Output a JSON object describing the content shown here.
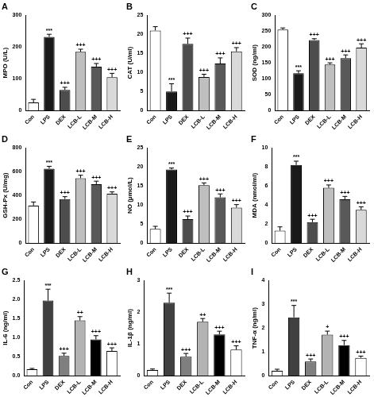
{
  "chart_data": [
    {
      "type": "bar",
      "title": "A",
      "y_label": "MPO (U/L)",
      "categories": [
        "Con",
        "LPS",
        "DEX",
        "LCB-L",
        "LCB-M",
        "LCB-H"
      ],
      "values": [
        25,
        232,
        65,
        185,
        138,
        105
      ],
      "errors": [
        10,
        8,
        8,
        8,
        10,
        12
      ],
      "significance": [
        null,
        "***",
        "+++",
        "+++",
        "+++",
        "+++"
      ],
      "colors": [
        "#ffffff",
        "#1a1a1a",
        "#4d4d4d",
        "#bfbfbf",
        "#595959",
        "#d9d9d9"
      ],
      "ylim": [
        0,
        300
      ],
      "yticks": [
        0,
        100,
        200,
        300
      ],
      "grid": false
    },
    {
      "type": "bar",
      "title": "B",
      "y_label": "CAT (U/ml)",
      "categories": [
        "Con",
        "LPS",
        "DEX",
        "LCB-L",
        "LCB-M",
        "LCB-H"
      ],
      "values": [
        21,
        5,
        17.5,
        8.8,
        12.3,
        15.5
      ],
      "errors": [
        1,
        2,
        1.5,
        0.7,
        1.5,
        1
      ],
      "significance": [
        null,
        "***",
        "+++",
        "+++",
        "+++",
        "+++"
      ],
      "colors": [
        "#ffffff",
        "#1a1a1a",
        "#4d4d4d",
        "#bfbfbf",
        "#595959",
        "#d9d9d9"
      ],
      "ylim": [
        0,
        25
      ],
      "yticks": [
        0,
        5,
        10,
        15,
        20,
        25
      ],
      "grid": false
    },
    {
      "type": "bar",
      "title": "C",
      "y_label": "SOD (ng/ml)",
      "categories": [
        "Con",
        "LPS",
        "DEX",
        "LCB-L",
        "LCB-M",
        "LCB-H"
      ],
      "values": [
        255,
        117,
        222,
        145,
        165,
        198
      ],
      "errors": [
        5,
        8,
        4,
        5,
        10,
        12
      ],
      "significance": [
        null,
        "***",
        "+++",
        "+++",
        "+++",
        "+++"
      ],
      "colors": [
        "#ffffff",
        "#1a1a1a",
        "#4d4d4d",
        "#bfbfbf",
        "#595959",
        "#d9d9d9"
      ],
      "ylim": [
        0,
        300
      ],
      "yticks": [
        0,
        50,
        100,
        150,
        200,
        250,
        300
      ],
      "grid": false
    },
    {
      "type": "bar",
      "title": "D",
      "y_label": "GSH-Px (U/mg)",
      "categories": [
        "Con",
        "LPS",
        "DEX",
        "LCB-L",
        "LCB-M",
        "LCB-H"
      ],
      "values": [
        315,
        625,
        370,
        545,
        495,
        415
      ],
      "errors": [
        30,
        20,
        20,
        25,
        25,
        15
      ],
      "significance": [
        null,
        "***",
        "+++",
        "+++",
        "+++",
        "+++"
      ],
      "colors": [
        "#ffffff",
        "#1a1a1a",
        "#4d4d4d",
        "#bfbfbf",
        "#595959",
        "#d9d9d9"
      ],
      "ylim": [
        0,
        800
      ],
      "yticks": [
        0,
        200,
        400,
        600,
        800
      ],
      "grid": false
    },
    {
      "type": "bar",
      "title": "E",
      "y_label": "NO (μmol/L)",
      "categories": [
        "Con",
        "LPS",
        "DEX",
        "LCB-L",
        "LCB-M",
        "LCB-H"
      ],
      "values": [
        3.7,
        19.3,
        6.3,
        15.2,
        12,
        9.3
      ],
      "errors": [
        0.7,
        0.4,
        0.8,
        0.6,
        0.9,
        0.8
      ],
      "significance": [
        null,
        "***",
        "+++",
        "+++",
        "+++",
        "+++"
      ],
      "colors": [
        "#ffffff",
        "#1a1a1a",
        "#4d4d4d",
        "#bfbfbf",
        "#595959",
        "#d9d9d9"
      ],
      "ylim": [
        0,
        25
      ],
      "yticks": [
        0,
        5,
        10,
        15,
        20,
        25
      ],
      "grid": false
    },
    {
      "type": "bar",
      "title": "F",
      "y_label": "MDA (nmol/ml)",
      "categories": [
        "Con",
        "LPS",
        "DEX",
        "LCB-L",
        "LCB-M",
        "LCB-H"
      ],
      "values": [
        1.3,
        8.2,
        2.2,
        5.8,
        4.6,
        3.5
      ],
      "errors": [
        0.4,
        0.4,
        0.3,
        0.3,
        0.3,
        0.3
      ],
      "significance": [
        null,
        "***",
        "+++",
        "+++",
        "+++",
        "+++"
      ],
      "colors": [
        "#ffffff",
        "#1a1a1a",
        "#4d4d4d",
        "#bfbfbf",
        "#595959",
        "#d9d9d9"
      ],
      "ylim": [
        0,
        10
      ],
      "yticks": [
        0,
        2,
        4,
        6,
        8,
        10
      ],
      "grid": false
    },
    {
      "type": "bar",
      "title": "G",
      "y_label": "IL-6 (ng/ml)",
      "categories": [
        "Con",
        "LPS",
        "DEX",
        "LCB-L",
        "LCB-M",
        "LCB-H"
      ],
      "values": [
        0.17,
        1.97,
        0.52,
        1.45,
        0.95,
        0.65
      ],
      "errors": [
        0.02,
        0.3,
        0.07,
        0.1,
        0.1,
        0.08
      ],
      "significance": [
        null,
        "***",
        "+++",
        "++",
        "+++",
        "+++"
      ],
      "colors": [
        "#ffffff",
        "#404040",
        "#7f7f7f",
        "#b3b3b3",
        "#000000",
        "#ffffff"
      ],
      "ylim": [
        0,
        2.5
      ],
      "yticks": [
        {
          "value": 0,
          "label": "0.0"
        },
        0.5,
        {
          "value": 1,
          "label": "1.0"
        },
        1.5,
        {
          "value": 2,
          "label": "2.0"
        },
        2.5
      ],
      "grid": false
    },
    {
      "type": "bar",
      "title": "H",
      "y_label": "IL-1β (ng/ml)",
      "categories": [
        "Con",
        "LPS",
        "DEX",
        "LCB-L",
        "LCB-M",
        "LCB-H"
      ],
      "values": [
        0.18,
        2.3,
        0.6,
        1.7,
        1.3,
        0.82
      ],
      "errors": [
        0.03,
        0.3,
        0.1,
        0.1,
        0.1,
        0.12
      ],
      "significance": [
        null,
        "***",
        "+++",
        "++",
        "+++",
        "+++"
      ],
      "colors": [
        "#ffffff",
        "#404040",
        "#7f7f7f",
        "#b3b3b3",
        "#000000",
        "#ffffff"
      ],
      "ylim": [
        0,
        3
      ],
      "yticks": [
        0,
        1,
        2,
        3
      ],
      "grid": false
    },
    {
      "type": "bar",
      "title": "I",
      "y_label": "TNF-α (ng/ml)",
      "categories": [
        "Con",
        "LPS",
        "DEX",
        "LCB-L",
        "LCB-M",
        "LCB-H"
      ],
      "values": [
        0.2,
        2.45,
        0.6,
        1.72,
        1.28,
        0.75
      ],
      "errors": [
        0.07,
        0.5,
        0.1,
        0.15,
        0.2,
        0.07
      ],
      "significance": [
        null,
        "***",
        "+++",
        "+",
        "+++",
        "+++"
      ],
      "colors": [
        "#ffffff",
        "#404040",
        "#7f7f7f",
        "#b3b3b3",
        "#000000",
        "#ffffff"
      ],
      "ylim": [
        0,
        4
      ],
      "yticks": [
        0,
        1,
        2,
        3,
        4
      ],
      "grid": false
    }
  ]
}
